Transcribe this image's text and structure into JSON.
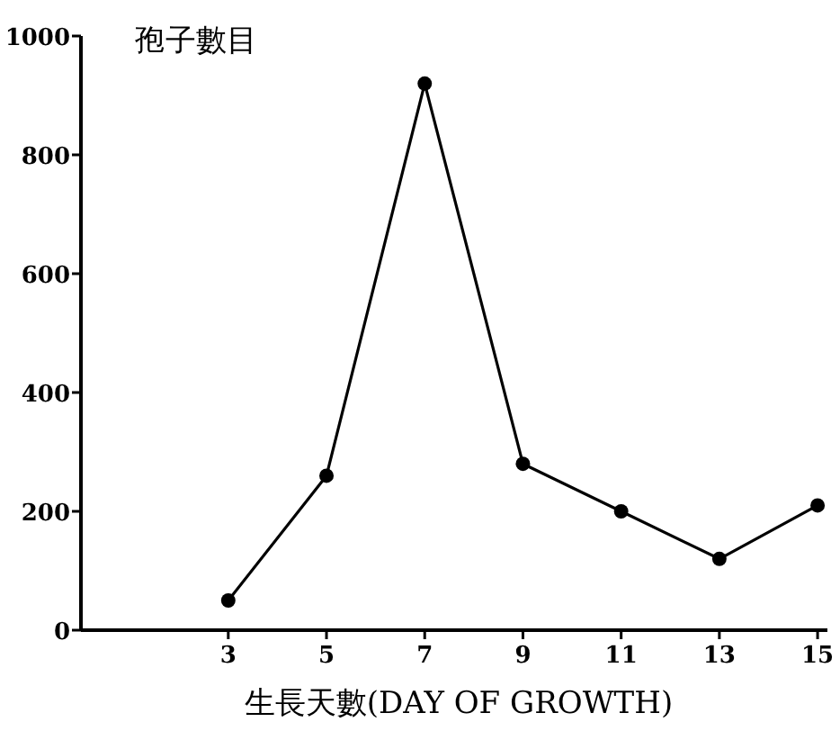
{
  "chart_data": {
    "type": "line",
    "ylabel": "孢子數目",
    "xlabel": "生長天數(DAY OF GROWTH)",
    "x": [
      3,
      5,
      7,
      9,
      11,
      13,
      15
    ],
    "values": [
      50,
      260,
      920,
      280,
      200,
      120,
      210
    ],
    "color": "#000000",
    "marker": "circle",
    "line_style": "solid",
    "xlim": [
      0,
      15.2
    ],
    "xticks": [
      3,
      5,
      7,
      9,
      11,
      13,
      15
    ],
    "ylim": [
      0,
      1000
    ],
    "yticks": [
      0,
      200,
      400,
      600,
      800,
      1000
    ]
  }
}
